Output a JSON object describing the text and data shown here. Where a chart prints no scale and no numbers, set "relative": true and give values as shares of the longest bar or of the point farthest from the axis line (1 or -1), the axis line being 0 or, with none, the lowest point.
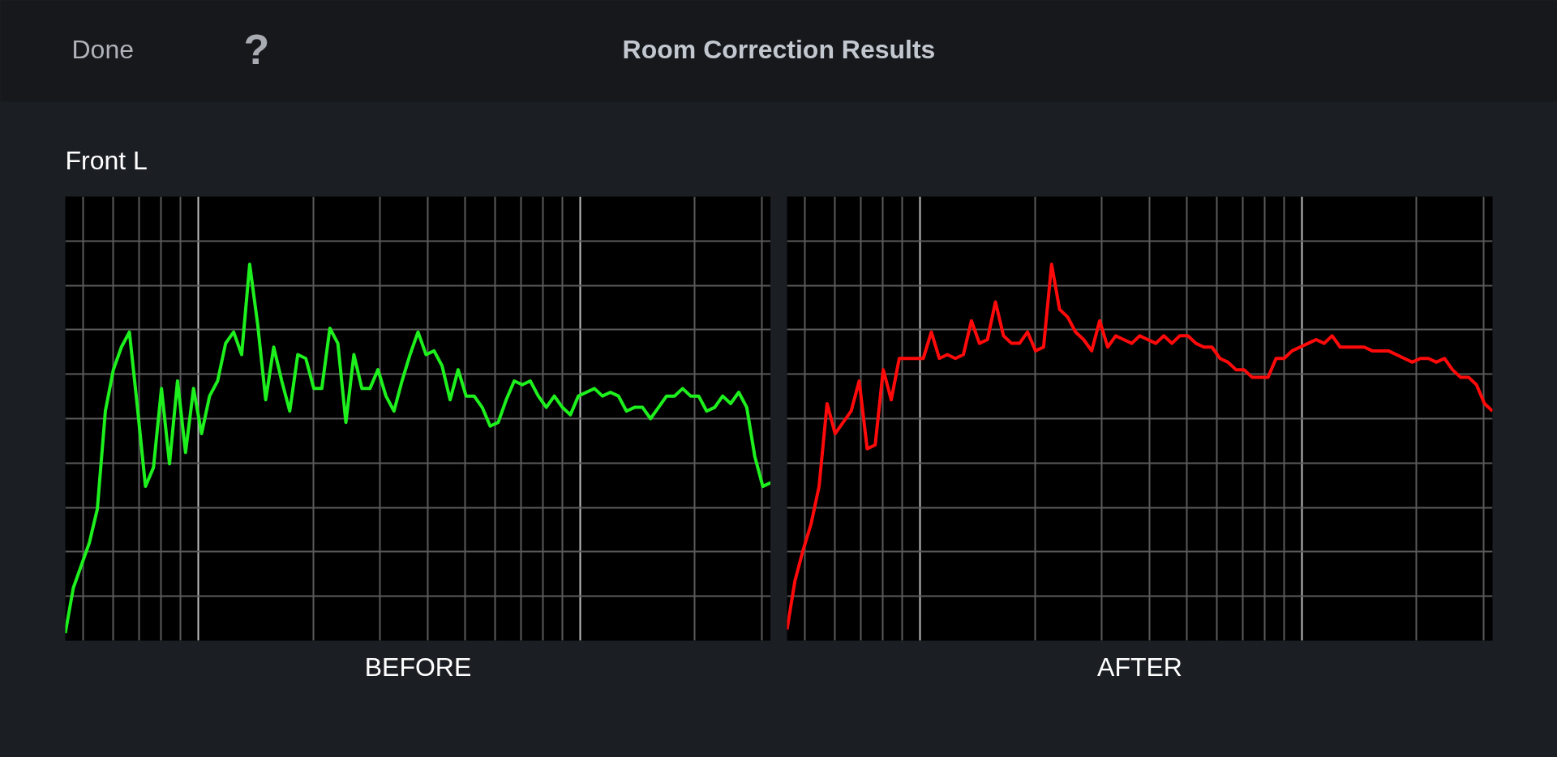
{
  "chart_data": [
    {
      "type": "line",
      "title": "Room Correction Results",
      "subtitle": "Front L",
      "annotations": [
        "Done",
        "?"
      ],
      "xlabel": "BEFORE",
      "relative": true,
      "grid": true,
      "categories": [
        null,
        null,
        null,
        null,
        null,
        null,
        null,
        null,
        null,
        null,
        null,
        null,
        null,
        null,
        null,
        null,
        null,
        null,
        null,
        null,
        null,
        null,
        null,
        null,
        null,
        null,
        null,
        null,
        null,
        null,
        null,
        null,
        null,
        null,
        null,
        null,
        null,
        null,
        null,
        null,
        null,
        null,
        null,
        null,
        null,
        null,
        null,
        null,
        null,
        null,
        null,
        null,
        null,
        null,
        null,
        null,
        null,
        null,
        null,
        null,
        null,
        null,
        null,
        null,
        null,
        null,
        null,
        null,
        null,
        null,
        null,
        null,
        null,
        null,
        null,
        null,
        null,
        null,
        null,
        null,
        null,
        null,
        null,
        null,
        null,
        null,
        null,
        null,
        null
      ],
      "series": [
        {
          "color": "#1ef01e",
          "values": [
            0.02,
            0.14,
            0.2,
            0.26,
            0.35,
            0.61,
            0.72,
            0.78,
            0.82,
            0.62,
            0.41,
            0.46,
            0.67,
            0.47,
            0.69,
            0.5,
            0.67,
            0.55,
            0.65,
            0.69,
            0.79,
            0.82,
            0.76,
            1,
            0.84,
            0.64,
            0.78,
            0.69,
            0.61,
            0.76,
            0.75,
            0.67,
            0.67,
            0.83,
            0.79,
            0.58,
            0.76,
            0.67,
            0.67,
            0.72,
            0.65,
            0.61,
            0.69,
            0.76,
            0.82,
            0.76,
            0.77,
            0.73,
            0.64,
            0.72,
            0.65,
            0.65,
            0.62,
            0.57,
            0.58,
            0.64,
            0.69,
            0.68,
            0.69,
            0.65,
            0.62,
            0.65,
            0.62,
            0.6,
            0.65,
            0.66,
            0.67,
            0.65,
            0.66,
            0.65,
            0.61,
            0.62,
            0.62,
            0.59,
            0.62,
            0.65,
            0.65,
            0.67,
            0.65,
            0.65,
            0.61,
            0.62,
            0.65,
            0.63,
            0.66,
            0.62,
            0.49,
            0.41,
            0.42
          ]
        }
      ]
    },
    {
      "type": "line",
      "xlabel": "AFTER",
      "relative": true,
      "grid": true,
      "categories": [
        null,
        null,
        null,
        null,
        null,
        null,
        null,
        null,
        null,
        null,
        null,
        null,
        null,
        null,
        null,
        null,
        null,
        null,
        null,
        null,
        null,
        null,
        null,
        null,
        null,
        null,
        null,
        null,
        null,
        null,
        null,
        null,
        null,
        null,
        null,
        null,
        null,
        null,
        null,
        null,
        null,
        null,
        null,
        null,
        null,
        null,
        null,
        null,
        null,
        null,
        null,
        null,
        null,
        null,
        null,
        null,
        null,
        null,
        null,
        null,
        null,
        null,
        null,
        null,
        null,
        null,
        null,
        null,
        null,
        null,
        null,
        null,
        null,
        null,
        null,
        null,
        null,
        null,
        null,
        null,
        null,
        null,
        null,
        null,
        null,
        null,
        null,
        null,
        null
      ],
      "series": [
        {
          "color": "#ff0a0a",
          "values": [
            0.03,
            0.16,
            0.24,
            0.31,
            0.41,
            0.63,
            0.55,
            0.58,
            0.61,
            0.69,
            0.51,
            0.52,
            0.72,
            0.64,
            0.75,
            0.75,
            0.75,
            0.75,
            0.82,
            0.75,
            0.76,
            0.75,
            0.76,
            0.85,
            0.79,
            0.8,
            0.9,
            0.81,
            0.79,
            0.79,
            0.82,
            0.77,
            0.78,
            1,
            0.88,
            0.86,
            0.82,
            0.8,
            0.77,
            0.85,
            0.78,
            0.81,
            0.8,
            0.79,
            0.81,
            0.8,
            0.79,
            0.81,
            0.79,
            0.81,
            0.81,
            0.79,
            0.78,
            0.78,
            0.75,
            0.74,
            0.72,
            0.72,
            0.7,
            0.7,
            0.7,
            0.75,
            0.75,
            0.77,
            0.78,
            0.79,
            0.8,
            0.79,
            0.81,
            0.78,
            0.78,
            0.78,
            0.78,
            0.77,
            0.77,
            0.77,
            0.76,
            0.75,
            0.74,
            0.75,
            0.75,
            0.74,
            0.75,
            0.72,
            0.7,
            0.7,
            0.68,
            0.63,
            0.61
          ]
        }
      ]
    }
  ]
}
